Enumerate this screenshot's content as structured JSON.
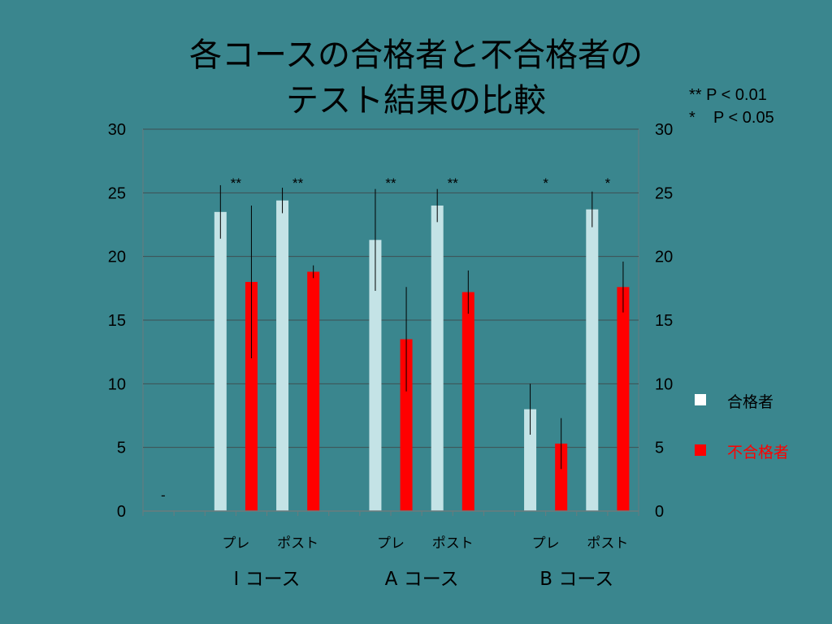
{
  "slide": {
    "title_line1": "各コースの合格者と不合格者の",
    "title_line2": "テスト結果の比較"
  },
  "significance_note": {
    "line1": "** P < 0.01",
    "line2": "*    P < 0.05"
  },
  "legend": {
    "items": [
      {
        "label": "合格者",
        "color": "#ffffff",
        "text_color": "#000000"
      },
      {
        "label": "不合格者",
        "color": "#ff0000",
        "text_color": "#ff0000"
      }
    ]
  },
  "colors": {
    "pass_bar": "#c4e3e6",
    "fail_bar": "#ff0000",
    "grid": "#3f4f52",
    "axis": "#6b7b7d",
    "error": "#000000"
  },
  "chart_data": {
    "type": "bar",
    "title": "各コースの合格者と不合格者のテスト結果の比較",
    "ylim": [
      0,
      30
    ],
    "yticks": [
      0,
      5,
      10,
      15,
      20,
      25,
      30
    ],
    "left_axis_labels": [
      "0",
      "5",
      "10",
      "15",
      "20",
      "25",
      "30"
    ],
    "right_axis_labels": [
      "0",
      "5",
      "10",
      "15",
      "20",
      "25",
      "30"
    ],
    "grid": true,
    "legend_position": "right",
    "origin_marker": "-",
    "groups": [
      "I コース",
      "A コース",
      "B コース"
    ],
    "subcategories": [
      "プレ",
      "ポスト"
    ],
    "series": [
      {
        "name": "合格者",
        "values": [
          23.5,
          24.4,
          21.3,
          24.0,
          8.0,
          23.7
        ],
        "errors": [
          2.1,
          1.0,
          4.0,
          1.3,
          2.0,
          1.4
        ]
      },
      {
        "name": "不合格者",
        "values": [
          18.0,
          18.8,
          13.5,
          17.2,
          5.3,
          17.6
        ],
        "errors": [
          6.0,
          0.5,
          4.1,
          1.7,
          2.0,
          2.0
        ]
      }
    ],
    "significance": [
      "**",
      "**",
      "**",
      "**",
      "*",
      "*"
    ]
  }
}
